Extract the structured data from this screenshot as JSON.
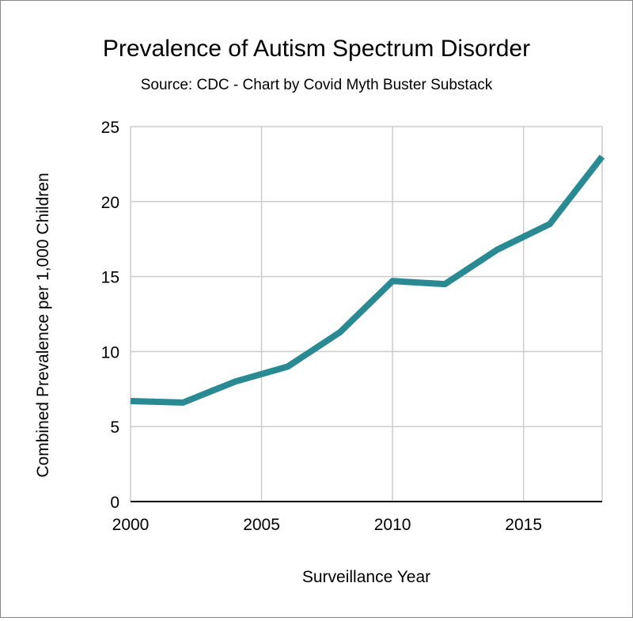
{
  "chart_data": {
    "type": "line",
    "title": "Prevalence of Autism Spectrum Disorder",
    "subtitle": "Source: CDC - Chart by Covid Myth Buster Substack",
    "xlabel": "Surveillance Year",
    "ylabel": "Combined Prevalence per 1,000 Children",
    "xlim": [
      2000,
      2018
    ],
    "ylim": [
      0,
      25
    ],
    "x_ticks": [
      2000,
      2005,
      2010,
      2015
    ],
    "y_ticks": [
      0,
      5,
      10,
      15,
      20,
      25
    ],
    "grid": true,
    "series": [
      {
        "x": [
          2000,
          2002,
          2004,
          2006,
          2008,
          2010,
          2012,
          2014,
          2016,
          2018
        ],
        "values": [
          6.7,
          6.6,
          8.0,
          9.0,
          11.3,
          14.7,
          14.5,
          16.8,
          18.5,
          23.0
        ],
        "color": "#2a8a94"
      }
    ]
  }
}
